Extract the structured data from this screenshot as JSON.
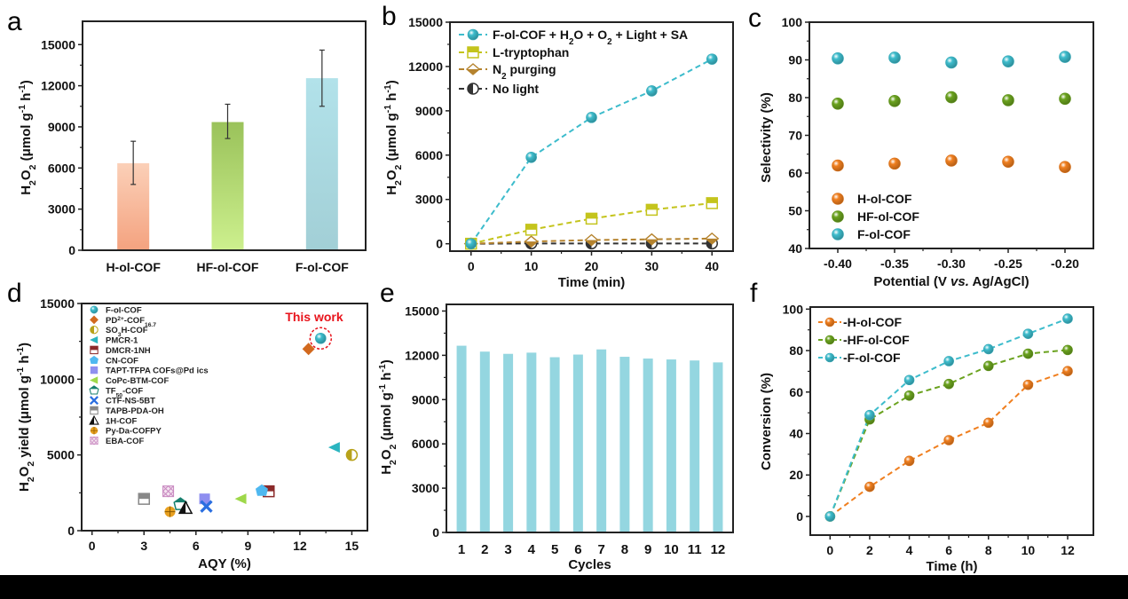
{
  "figure": {
    "panels": [
      "a",
      "b",
      "c",
      "d",
      "e",
      "f"
    ]
  },
  "chart_data": [
    {
      "panel": "a",
      "type": "bar",
      "title": "",
      "xlabel": "",
      "ylabel": "H2O2 (μmol g-1 h-1)",
      "categories": [
        "H-ol-COF",
        "HF-ol-COF",
        "F-ol-COF"
      ],
      "values": [
        6350,
        9350,
        12550
      ],
      "errors_low": [
        4800,
        8150,
        10500
      ],
      "errors_high": [
        7950,
        10650,
        14600
      ],
      "colors": [
        [
          "#f4a27f",
          "#fbd0b8"
        ],
        [
          "#cdf08e",
          "#9ac25a"
        ],
        [
          "#a2cfd6",
          "#b2e2ea"
        ]
      ],
      "ylim": [
        0,
        16700
      ],
      "yticks": [
        0,
        3000,
        6000,
        9000,
        12000,
        15000
      ],
      "grid": false
    },
    {
      "panel": "b",
      "type": "line",
      "xlabel": "Time (min)",
      "ylabel": "H2O2 (μmol g-1 h-1)",
      "x": [
        0,
        10,
        20,
        30,
        40
      ],
      "xlim": [
        -3.5,
        43.5
      ],
      "ylim": [
        -500,
        15000
      ],
      "xticks": [
        0,
        10,
        20,
        30,
        40
      ],
      "yticks": [
        0,
        3000,
        6000,
        9000,
        12000,
        15000
      ],
      "legend_position": "top-left",
      "series": [
        {
          "name": "F-ol-COF + H2O + O2 + Light + SA",
          "color": "#3dbccc",
          "marker": "sphere",
          "values": [
            0,
            5850,
            8550,
            10350,
            12500
          ]
        },
        {
          "name": "L-tryptophan",
          "color": "#c4c41c",
          "marker": "half-square",
          "values": [
            0,
            950,
            1700,
            2300,
            2750
          ]
        },
        {
          "name": "N2 purging",
          "color": "#b5832e",
          "marker": "half-diamond",
          "values": [
            0,
            150,
            250,
            300,
            350
          ]
        },
        {
          "name": "No light",
          "color": "#333333",
          "marker": "half-circle",
          "values": [
            0,
            20,
            20,
            20,
            20
          ]
        }
      ]
    },
    {
      "panel": "c",
      "type": "scatter",
      "xlabel": "Potential (V vs. Ag/AgCl)",
      "ylabel": "Selectivity (%)",
      "x": [
        -0.4,
        -0.35,
        -0.3,
        -0.25,
        -0.2
      ],
      "xticks": [
        "-0.40",
        "-0.35",
        "-0.30",
        "-0.25",
        "-0.20"
      ],
      "xlim": [
        -0.425,
        -0.175
      ],
      "ylim": [
        40,
        100
      ],
      "yticks": [
        40,
        50,
        60,
        70,
        80,
        90,
        100
      ],
      "legend_position": "bottom-left",
      "series": [
        {
          "name": "H-ol-COF",
          "color": "#f07f1f",
          "values": [
            62.0,
            62.5,
            63.3,
            63.0,
            61.6
          ]
        },
        {
          "name": "HF-ol-COF",
          "color": "#6aa21e",
          "values": [
            78.4,
            79.1,
            80.1,
            79.3,
            79.7
          ]
        },
        {
          "name": "F-ol-COF",
          "color": "#3dbccc",
          "values": [
            90.4,
            90.6,
            89.3,
            89.6,
            90.8
          ]
        }
      ]
    },
    {
      "panel": "d",
      "type": "scatter",
      "xlabel": "AQY (%)",
      "ylabel": "H2O2 yield (μmol g-1 h-1)",
      "xlim": [
        -0.6,
        15.9
      ],
      "ylim": [
        0,
        15000
      ],
      "xticks": [
        0,
        3,
        6,
        9,
        12,
        15
      ],
      "yticks": [
        0,
        5000,
        10000,
        15000
      ],
      "annotation": "This work",
      "annotation_color": "#e8141c",
      "legend_position": "top-left",
      "points": [
        {
          "name": "F-ol-COF",
          "x": 13.2,
          "y": 12700,
          "color": "#3dbccc",
          "marker": "sphere"
        },
        {
          "name": "PD2+-COF16.7",
          "x": 12.5,
          "y": 12000,
          "color": "#d2691e",
          "marker": "diamond"
        },
        {
          "name": "SO3H-COF",
          "x": 15.0,
          "y": 5000,
          "color": "#b8a21a",
          "marker": "half-circle"
        },
        {
          "name": "PMCR-1",
          "x": 14.0,
          "y": 5500,
          "color": "#2bb5c0",
          "marker": "left-triangle"
        },
        {
          "name": "DMCR-1NH",
          "x": 10.2,
          "y": 2600,
          "color": "#8b2a2a",
          "marker": "half-square"
        },
        {
          "name": "CN-COF",
          "x": 9.8,
          "y": 2650,
          "color": "#4fb8f0",
          "marker": "pentagon"
        },
        {
          "name": "TAPT-TFPA COFs@Pd ics",
          "x": 6.5,
          "y": 2100,
          "color": "#8f8ff0",
          "marker": "square"
        },
        {
          "name": "CoPc-BTM-COF",
          "x": 8.6,
          "y": 2100,
          "color": "#9ed84a",
          "marker": "left-triangle"
        },
        {
          "name": "TF50-COF",
          "x": 5.1,
          "y": 1750,
          "color": "#17806e",
          "marker": "half-pentagon"
        },
        {
          "name": "CTF-NS-5BT",
          "x": 6.6,
          "y": 1600,
          "color": "#2a6ee0",
          "marker": "x"
        },
        {
          "name": "TAPB-PDA-OH",
          "x": 3.0,
          "y": 2100,
          "color": "#888888",
          "marker": "half-square"
        },
        {
          "name": "1H-COF",
          "x": 5.4,
          "y": 1500,
          "color": "#111111",
          "marker": "half-triangle"
        },
        {
          "name": "Py-Da-COFPY",
          "x": 4.5,
          "y": 1250,
          "color": "#e8a020",
          "marker": "crossed-circle"
        },
        {
          "name": "EBA-COF",
          "x": 4.4,
          "y": 2600,
          "color": "#c888c0",
          "marker": "hatched-square"
        }
      ]
    },
    {
      "panel": "e",
      "type": "bar",
      "xlabel": "Cycles",
      "ylabel": "H2O2 (μmol g-1 h-1)",
      "categories": [
        "1",
        "2",
        "3",
        "4",
        "5",
        "6",
        "7",
        "8",
        "9",
        "10",
        "11",
        "12"
      ],
      "values": [
        12650,
        12250,
        12100,
        12180,
        11870,
        12050,
        12400,
        11900,
        11780,
        11720,
        11650,
        11520
      ],
      "color": "#94d6e0",
      "ylim": [
        0,
        15450
      ],
      "yticks": [
        0,
        3000,
        6000,
        9000,
        12000,
        15000
      ]
    },
    {
      "panel": "f",
      "type": "line",
      "xlabel": "Time (h)",
      "ylabel": "Conversion (%)",
      "x": [
        0,
        2,
        4,
        6,
        8,
        10,
        12
      ],
      "xlim": [
        -1,
        13.3
      ],
      "ylim": [
        -9,
        101
      ],
      "xticks": [
        0,
        2,
        4,
        6,
        8,
        10,
        12
      ],
      "yticks": [
        0,
        20,
        40,
        60,
        80,
        100
      ],
      "legend_position": "top-left",
      "series": [
        {
          "name": "H-ol-COF",
          "color": "#f07f1f",
          "values": [
            0,
            14.3,
            26.8,
            36.8,
            45.2,
            63.5,
            70.1
          ]
        },
        {
          "name": "HF-ol-COF",
          "color": "#6aa21e",
          "values": [
            0,
            46.8,
            58.3,
            63.9,
            72.6,
            78.5,
            80.3
          ]
        },
        {
          "name": "F-ol-COF",
          "color": "#3dbccc",
          "values": [
            0,
            48.9,
            65.8,
            74.9,
            80.7,
            88.1,
            95.4
          ]
        }
      ]
    }
  ]
}
